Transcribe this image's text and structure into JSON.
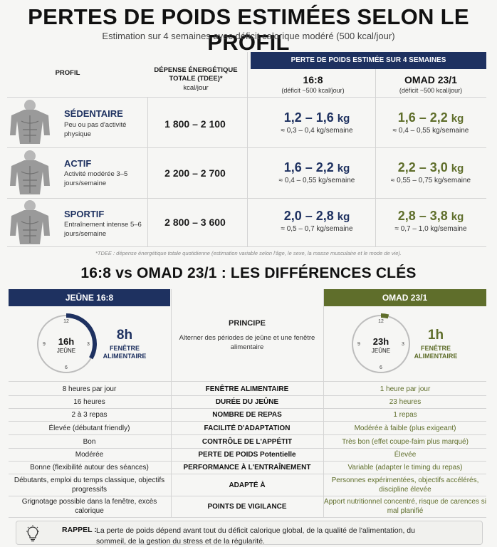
{
  "title": "PERTES DE POIDS ESTIMÉES SELON LE PROFIL",
  "subtitle": "Estimation sur 4 semaines avec déficit calorique modéré (500 kcal/jour)",
  "table": {
    "col_profil": "PROFIL",
    "col_tdee_1": "DÉPENSE ÉNERGÉTIQUE",
    "col_tdee_2": "TOTALE (TDEE)*",
    "col_tdee_3": "kcal/jour",
    "band": "PERTE DE POIDS ESTIMÉE SUR 4 SEMAINES",
    "col_168": "16:8",
    "col_168_sub": "(déficit ~500 kcal/jour)",
    "col_omad": "OMAD 23/1",
    "col_omad_sub": "(déficit ~500 kcal/jour)",
    "rows": [
      {
        "name": "SÉDENTAIRE",
        "desc": "Peu ou pas d'activité physique",
        "tdee": "1 800 – 2 100",
        "a_big": "1,2 – 1,6",
        "a_unit": "kg",
        "a_sm": "≈ 0,3 – 0,4 kg/semaine",
        "b_big": "1,6 – 2,2",
        "b_unit": "kg",
        "b_sm": "≈ 0,4 – 0,55 kg/semaine"
      },
      {
        "name": "ACTIF",
        "desc": "Activité modérée 3–5 jours/semaine",
        "tdee": "2 200 – 2 700",
        "a_big": "1,6 – 2,2",
        "a_unit": "kg",
        "a_sm": "≈ 0,4 – 0,55 kg/semaine",
        "b_big": "2,2 – 3,0",
        "b_unit": "kg",
        "b_sm": "≈ 0,55 – 0,75 kg/semaine"
      },
      {
        "name": "SPORTIF",
        "desc": "Entraînement intense 5–6 jours/semaine",
        "tdee": "2 800 – 3 600",
        "a_big": "2,0 – 2,8",
        "a_unit": "kg",
        "a_sm": "≈ 0,5 – 0,7 kg/semaine",
        "b_big": "2,8 – 3,8",
        "b_unit": "kg",
        "b_sm": "≈ 0,7 – 1,0 kg/semaine"
      }
    ],
    "footnote": "*TDEE : dépense énergétique totale quotidienne (estimation variable selon l'âge, le sexe, la masse musculaire et le mode de vie)."
  },
  "compare": {
    "title": "16:8 vs OMAD 23/1 : LES DIFFÉRENCES CLÉS",
    "left_band": "JEÛNE 16:8",
    "right_band": "OMAD 23/1",
    "principe_title": "PRINCIPE",
    "principe_desc": "Alterner des périodes de jeûne et une fenêtre alimentaire",
    "clock_left": {
      "hours": "16h",
      "label": "JEÛNE",
      "win": "8h",
      "win_l1": "FENÊTRE",
      "win_l2": "ALIMENTAIRE",
      "fraction": 0.333
    },
    "clock_right": {
      "hours": "23h",
      "label": "JEÛNE",
      "win": "1h",
      "win_l1": "FENÊTRE",
      "win_l2": "ALIMENTAIRE",
      "fraction": 0.042
    },
    "clock_ticks": {
      "t12": "12",
      "t3": "3",
      "t6": "6",
      "t9": "9"
    },
    "rows": [
      {
        "l": "8 heures par jour",
        "m": "FENÊTRE ALIMENTAIRE",
        "r": "1 heure par jour"
      },
      {
        "l": "16 heures",
        "m": "DURÉE DU JEÛNE",
        "r": "23 heures"
      },
      {
        "l": "2 à 3 repas",
        "m": "NOMBRE DE REPAS",
        "r": "1 repas"
      },
      {
        "l": "Élevée (débutant friendly)",
        "m": "FACILITÉ D'ADAPTATION",
        "r": "Modérée à faible (plus exigeant)"
      },
      {
        "l": "Bon",
        "m": "CONTRÔLE DE L'APPÉTIT",
        "r": "Très bon (effet coupe-faim plus marqué)"
      },
      {
        "l": "Modérée",
        "m": "PERTE DE POIDS Potentielle",
        "r": "Élevée"
      },
      {
        "l": "Bonne (flexibilité autour des séances)",
        "m": "PERFORMANCE À L'ENTRAÎNEMENT",
        "r": "Variable (adapter le timing du repas)"
      },
      {
        "l": "Débutants, emploi du temps classique, objectifs progressifs",
        "m": "ADAPTÉ À",
        "r": "Personnes expérimentées, objectifs accélérés, discipline élevée"
      },
      {
        "l": "Grignotage possible dans la fenêtre, excès calorique",
        "m": "POINTS DE VIGILANCE",
        "r": "Apport nutritionnel concentré, risque de carences si mal planifié"
      }
    ]
  },
  "rappel": {
    "label": "RAPPEL :",
    "text": "La perte de poids dépend avant tout du déficit calorique global, de la qualité de l'alimentation, du sommeil, de la gestion du stress et de la régularité."
  },
  "colors": {
    "navy": "#1e3160",
    "olive": "#5f6e2b"
  }
}
